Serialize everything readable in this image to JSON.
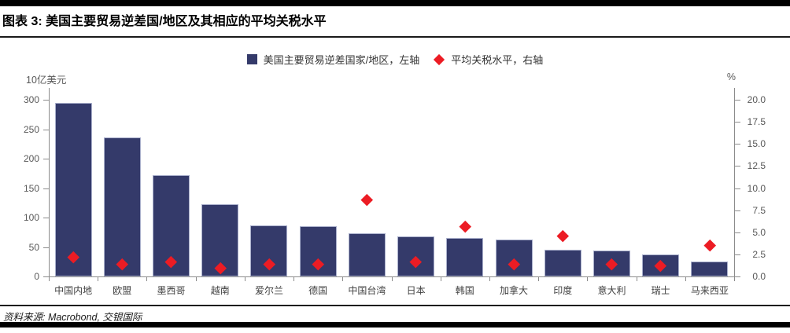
{
  "title": "图表 3: 美国主要贸易逆差国/地区及其相应的平均关税水平",
  "legend": {
    "bars_label": "美国主要贸易逆差国家/地区，左轴",
    "diamonds_label": "平均关税水平，右轴"
  },
  "axes": {
    "left_unit": "10亿美元",
    "right_unit": "%"
  },
  "source": "资料来源: Macrobond, 交银国际",
  "colors": {
    "bar": "#343a6a",
    "bar_edge": "#aab0cc",
    "diamond": "#ec1c24",
    "axis": "#8c8c8c",
    "tick_label": "#595959",
    "top_bottom_bars": "#000000"
  },
  "chart_data": {
    "type": "bar",
    "title": "图表 3: 美国主要贸易逆差国/地区及其相应的平均关税水平",
    "categories": [
      "中国内地",
      "欧盟",
      "墨西哥",
      "越南",
      "爱尔兰",
      "德国",
      "中国台湾",
      "日本",
      "韩国",
      "加拿大",
      "印度",
      "意大利",
      "瑞士",
      "马来西亚"
    ],
    "series": [
      {
        "name": "美国主要贸易逆差国家/地区，左轴",
        "type": "bar",
        "axis": "left",
        "values": [
          295,
          236,
          172,
          123,
          87,
          85,
          74,
          68,
          66,
          63,
          46,
          44,
          38,
          25
        ]
      },
      {
        "name": "平均关税水平，右轴",
        "type": "scatter",
        "marker": "diamond",
        "axis": "right",
        "values": [
          2.2,
          1.4,
          1.7,
          1.0,
          1.4,
          1.4,
          8.7,
          1.7,
          5.7,
          1.4,
          4.6,
          1.4,
          1.2,
          3.5
        ]
      }
    ],
    "ylabel_left": "10亿美元",
    "ylabel_right": "%",
    "ylim_left": [
      0,
      300
    ],
    "ylim_right": [
      0,
      20
    ],
    "left_ticks": [
      0,
      50,
      100,
      150,
      200,
      250,
      300
    ],
    "right_ticks": [
      0.0,
      2.5,
      5.0,
      7.5,
      10.0,
      12.5,
      15.0,
      17.5,
      20.0
    ],
    "grid": false,
    "legend_position": "top-center"
  }
}
